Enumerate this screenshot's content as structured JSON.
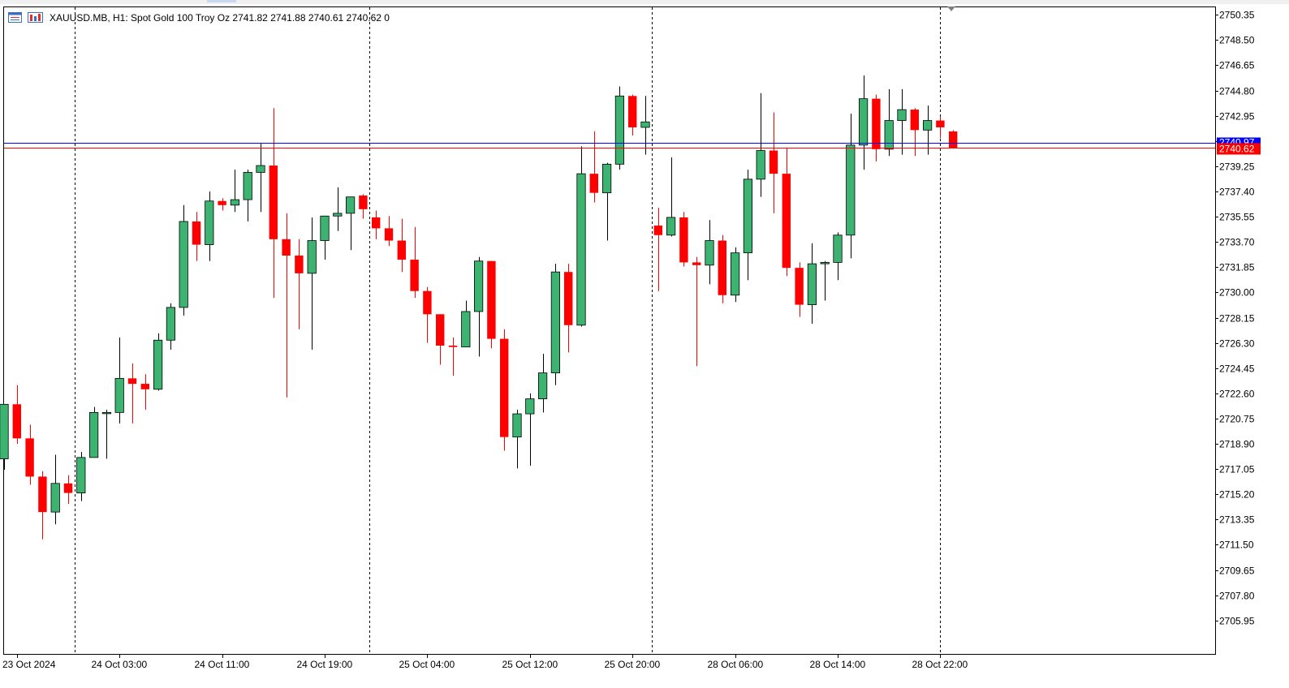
{
  "header": {
    "symbol_line": "XAUUSD.MB, H1:  Spot Gold 100 Troy Oz  2741.82 2741.88 2740.61 2740.62  0"
  },
  "colors": {
    "bull_fill": "#3cb371",
    "bear_fill": "#ff0000",
    "candle_outline": "#000000",
    "bid_line": "#ff0000",
    "ask_line": "#0000ff",
    "separator": "#000000",
    "axis_text": "#000000"
  },
  "icons": [
    "chart-type-icon",
    "chart-window-icon"
  ],
  "chart_data": {
    "type": "candlestick",
    "timeframe": "H1",
    "y_ticks": [
      "2750.35",
      "2748.50",
      "2746.65",
      "2744.80",
      "2742.95",
      "2741.10",
      "2739.25",
      "2737.40",
      "2735.55",
      "2733.70",
      "2731.85",
      "2730.00",
      "2728.15",
      "2726.30",
      "2724.45",
      "2722.60",
      "2720.75",
      "2718.90",
      "2717.05",
      "2715.20",
      "2713.35",
      "2711.50",
      "2709.65",
      "2707.80",
      "2705.95"
    ],
    "ylim": [
      2703.5,
      2750.9
    ],
    "x_labels": [
      "23 Oct 2024",
      "24 Oct 03:00",
      "24 Oct 11:00",
      "24 Oct 19:00",
      "25 Oct 04:00",
      "25 Oct 12:00",
      "25 Oct 20:00",
      "28 Oct 06:00",
      "28 Oct 14:00",
      "28 Oct 22:00"
    ],
    "x_label_bars": [
      1,
      9,
      17,
      25,
      33,
      41,
      49,
      57,
      65,
      73
    ],
    "day_separator_bars": [
      5.5,
      28.5,
      50.5,
      73
    ],
    "ask_price": 2740.97,
    "bid_price": 2740.62,
    "bid_label": "2740.62",
    "ask_label": "2740.97",
    "candles": [
      {
        "o": 2717.8,
        "h": 2721.8,
        "l": 2717.0,
        "c": 2721.8
      },
      {
        "o": 2721.8,
        "h": 2723.2,
        "l": 2718.9,
        "c": 2719.3
      },
      {
        "o": 2719.3,
        "h": 2720.3,
        "l": 2715.9,
        "c": 2716.5
      },
      {
        "o": 2716.5,
        "h": 2716.9,
        "l": 2711.9,
        "c": 2713.9
      },
      {
        "o": 2713.9,
        "h": 2718.1,
        "l": 2713.0,
        "c": 2716.0
      },
      {
        "o": 2716.0,
        "h": 2716.6,
        "l": 2714.5,
        "c": 2715.3
      },
      {
        "o": 2715.3,
        "h": 2718.3,
        "l": 2714.7,
        "c": 2717.9
      },
      {
        "o": 2717.9,
        "h": 2721.6,
        "l": 2717.9,
        "c": 2721.2
      },
      {
        "o": 2721.2,
        "h": 2721.4,
        "l": 2717.8,
        "c": 2721.2
      },
      {
        "o": 2721.2,
        "h": 2726.7,
        "l": 2720.4,
        "c": 2723.7
      },
      {
        "o": 2723.7,
        "h": 2724.8,
        "l": 2720.4,
        "c": 2723.3
      },
      {
        "o": 2723.3,
        "h": 2724.0,
        "l": 2721.4,
        "c": 2722.9
      },
      {
        "o": 2722.9,
        "h": 2727.0,
        "l": 2722.8,
        "c": 2726.5
      },
      {
        "o": 2726.5,
        "h": 2729.2,
        "l": 2725.8,
        "c": 2728.9
      },
      {
        "o": 2728.9,
        "h": 2736.4,
        "l": 2728.3,
        "c": 2735.2
      },
      {
        "o": 2735.2,
        "h": 2735.9,
        "l": 2732.3,
        "c": 2733.5
      },
      {
        "o": 2733.5,
        "h": 2737.4,
        "l": 2732.3,
        "c": 2736.7
      },
      {
        "o": 2736.7,
        "h": 2736.9,
        "l": 2736.0,
        "c": 2736.4
      },
      {
        "o": 2736.4,
        "h": 2739.0,
        "l": 2735.9,
        "c": 2736.8
      },
      {
        "o": 2736.8,
        "h": 2739.0,
        "l": 2735.2,
        "c": 2738.8
      },
      {
        "o": 2738.8,
        "h": 2740.9,
        "l": 2735.9,
        "c": 2739.3
      },
      {
        "o": 2739.3,
        "h": 2743.5,
        "l": 2729.6,
        "c": 2733.9
      },
      {
        "o": 2733.9,
        "h": 2735.8,
        "l": 2722.3,
        "c": 2732.7
      },
      {
        "o": 2732.7,
        "h": 2733.9,
        "l": 2727.3,
        "c": 2731.4
      },
      {
        "o": 2731.4,
        "h": 2735.5,
        "l": 2725.8,
        "c": 2733.8
      },
      {
        "o": 2733.8,
        "h": 2735.6,
        "l": 2732.4,
        "c": 2735.6
      },
      {
        "o": 2735.6,
        "h": 2737.7,
        "l": 2734.5,
        "c": 2735.8
      },
      {
        "o": 2735.8,
        "h": 2736.9,
        "l": 2733.1,
        "c": 2737.0
      },
      {
        "o": 2737.1,
        "h": 2737.2,
        "l": 2735.4,
        "c": 2736.1
      },
      {
        "o": 2735.5,
        "h": 2736.0,
        "l": 2733.9,
        "c": 2734.7
      },
      {
        "o": 2734.7,
        "h": 2735.6,
        "l": 2733.4,
        "c": 2733.8
      },
      {
        "o": 2733.8,
        "h": 2735.4,
        "l": 2731.5,
        "c": 2732.4
      },
      {
        "o": 2732.4,
        "h": 2734.8,
        "l": 2729.6,
        "c": 2730.1
      },
      {
        "o": 2730.1,
        "h": 2730.4,
        "l": 2726.3,
        "c": 2728.4
      },
      {
        "o": 2728.4,
        "h": 2728.4,
        "l": 2724.7,
        "c": 2726.1
      },
      {
        "o": 2726.1,
        "h": 2726.7,
        "l": 2723.9,
        "c": 2726.0
      },
      {
        "o": 2726.0,
        "h": 2729.4,
        "l": 2726.0,
        "c": 2728.6
      },
      {
        "o": 2728.6,
        "h": 2732.6,
        "l": 2725.3,
        "c": 2732.3
      },
      {
        "o": 2732.3,
        "h": 2732.3,
        "l": 2725.9,
        "c": 2726.6
      },
      {
        "o": 2726.6,
        "h": 2727.3,
        "l": 2718.4,
        "c": 2719.4
      },
      {
        "o": 2719.4,
        "h": 2721.4,
        "l": 2717.1,
        "c": 2721.1
      },
      {
        "o": 2721.1,
        "h": 2722.6,
        "l": 2717.3,
        "c": 2722.2
      },
      {
        "o": 2722.2,
        "h": 2725.5,
        "l": 2721.2,
        "c": 2724.1
      },
      {
        "o": 2724.1,
        "h": 2732.1,
        "l": 2723.2,
        "c": 2731.5
      },
      {
        "o": 2731.5,
        "h": 2732.1,
        "l": 2725.6,
        "c": 2727.6
      },
      {
        "o": 2727.6,
        "h": 2740.7,
        "l": 2727.5,
        "c": 2738.7
      },
      {
        "o": 2738.7,
        "h": 2741.8,
        "l": 2736.6,
        "c": 2737.3
      },
      {
        "o": 2737.3,
        "h": 2739.5,
        "l": 2733.8,
        "c": 2739.4
      },
      {
        "o": 2739.4,
        "h": 2745.1,
        "l": 2739.0,
        "c": 2744.4
      },
      {
        "o": 2744.4,
        "h": 2744.5,
        "l": 2741.5,
        "c": 2742.1
      },
      {
        "o": 2742.1,
        "h": 2744.4,
        "l": 2740.1,
        "c": 2742.5
      },
      {
        "o": 2734.9,
        "h": 2736.2,
        "l": 2730.1,
        "c": 2734.2
      },
      {
        "o": 2734.2,
        "h": 2739.9,
        "l": 2734.1,
        "c": 2735.5
      },
      {
        "o": 2735.5,
        "h": 2735.9,
        "l": 2731.9,
        "c": 2732.2
      },
      {
        "o": 2732.2,
        "h": 2732.6,
        "l": 2724.6,
        "c": 2732.0
      },
      {
        "o": 2732.0,
        "h": 2735.3,
        "l": 2730.6,
        "c": 2733.8
      },
      {
        "o": 2733.8,
        "h": 2734.2,
        "l": 2729.2,
        "c": 2729.8
      },
      {
        "o": 2729.8,
        "h": 2733.3,
        "l": 2729.3,
        "c": 2732.9
      },
      {
        "o": 2732.9,
        "h": 2739.0,
        "l": 2730.9,
        "c": 2738.3
      },
      {
        "o": 2738.3,
        "h": 2744.6,
        "l": 2737.0,
        "c": 2740.4
      },
      {
        "o": 2740.4,
        "h": 2743.2,
        "l": 2735.8,
        "c": 2738.7
      },
      {
        "o": 2738.7,
        "h": 2740.6,
        "l": 2731.2,
        "c": 2731.8
      },
      {
        "o": 2731.8,
        "h": 2732.2,
        "l": 2728.2,
        "c": 2729.1
      },
      {
        "o": 2729.1,
        "h": 2733.6,
        "l": 2727.7,
        "c": 2732.1
      },
      {
        "o": 2732.1,
        "h": 2732.3,
        "l": 2729.4,
        "c": 2732.2
      },
      {
        "o": 2732.2,
        "h": 2734.4,
        "l": 2730.9,
        "c": 2734.2
      },
      {
        "o": 2734.2,
        "h": 2743.1,
        "l": 2732.5,
        "c": 2740.8
      },
      {
        "o": 2740.8,
        "h": 2745.9,
        "l": 2739.0,
        "c": 2744.2
      },
      {
        "o": 2744.2,
        "h": 2744.5,
        "l": 2739.6,
        "c": 2740.5
      },
      {
        "o": 2740.5,
        "h": 2744.9,
        "l": 2740.0,
        "c": 2742.6
      },
      {
        "o": 2742.6,
        "h": 2744.9,
        "l": 2740.1,
        "c": 2743.4
      },
      {
        "o": 2743.4,
        "h": 2743.5,
        "l": 2740.0,
        "c": 2741.9
      },
      {
        "o": 2741.9,
        "h": 2743.7,
        "l": 2740.1,
        "c": 2742.6
      },
      {
        "o": 2742.6,
        "h": 2742.9,
        "l": 2741.3,
        "c": 2742.1
      },
      {
        "o": 2741.8,
        "h": 2741.9,
        "l": 2740.6,
        "c": 2740.6
      }
    ]
  }
}
